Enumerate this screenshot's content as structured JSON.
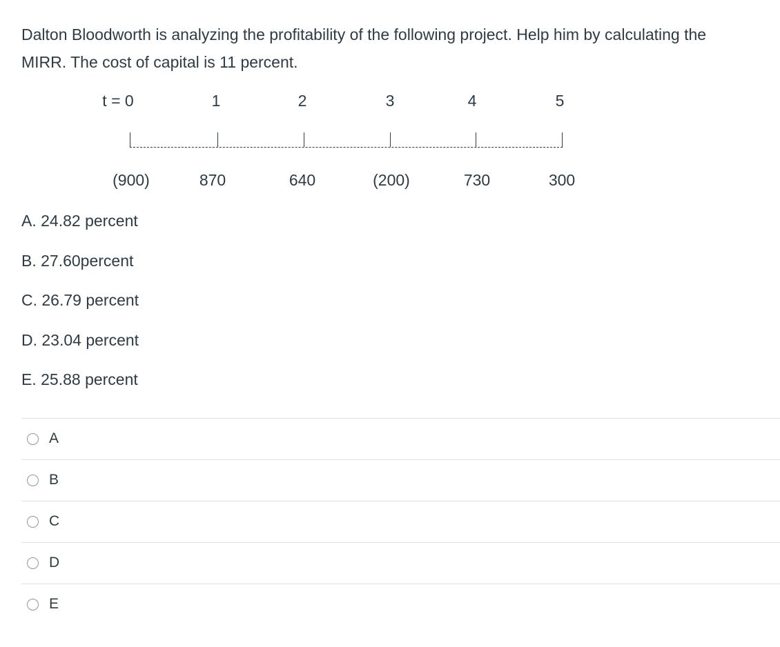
{
  "question": {
    "line1": "Dalton Bloodworth is analyzing the profitability of the following project.  Help him by calculating the",
    "line2": "MIRR.   The cost of capital is 11 percent."
  },
  "timeline": {
    "periods": [
      "t = 0",
      "1",
      "2",
      "3",
      "4",
      "5"
    ],
    "cash_flows": [
      "(900)",
      "870",
      "640",
      "(200)",
      "730",
      "300"
    ]
  },
  "choices": [
    "A. 24.82 percent",
    "B. 27.60percent",
    "C. 26.79 percent",
    "D. 23.04 percent",
    "E. 25.88 percent"
  ],
  "answers": [
    {
      "label": "A",
      "selected": false
    },
    {
      "label": "B",
      "selected": false
    },
    {
      "label": "C",
      "selected": false
    },
    {
      "label": "D",
      "selected": false
    },
    {
      "label": "E",
      "selected": false
    }
  ]
}
